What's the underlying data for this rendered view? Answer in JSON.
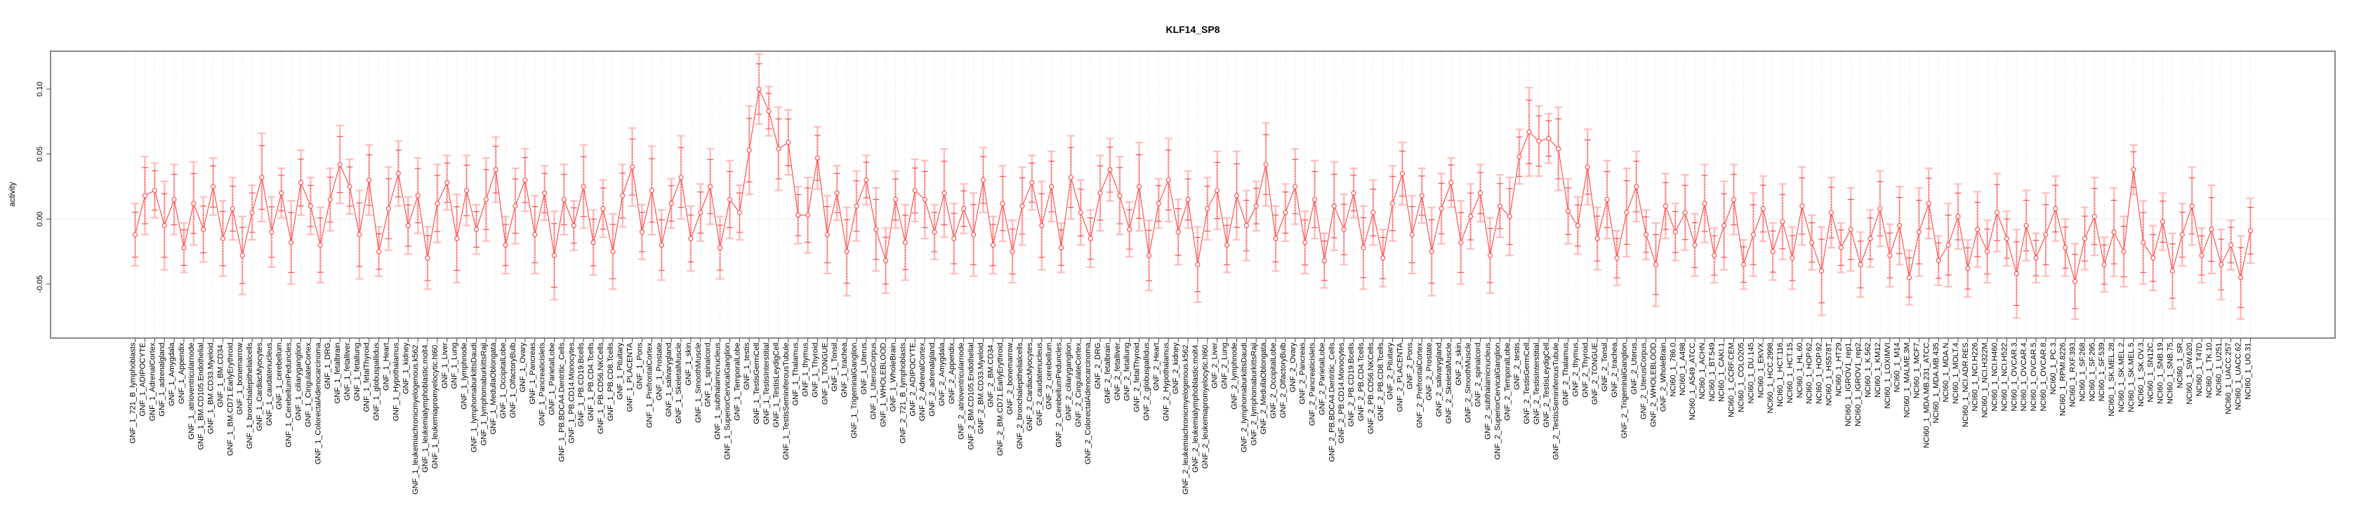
{
  "page": {
    "background": "#ffffff"
  },
  "chart_data": {
    "type": "line",
    "title": "KLF14_SP8",
    "ylabel": "activity",
    "xlabel": "",
    "legend": "none",
    "marker": "open-circle",
    "line_color": "#ff4646",
    "error_bar_outer_color": "#ffb4b4",
    "grid_color": "#dcdcdc",
    "zero_line_color": "#c9c9c9",
    "frame_color": "#8a8a8a",
    "tick_color": "#4a4a4a",
    "grid": "vertical-dashed-per-category",
    "zero_line": true,
    "ylim": [
      -0.092,
      0.129
    ],
    "yticks": [
      -0.05,
      0.0,
      0.05,
      0.1
    ],
    "ytick_labels": [
      "-0.05",
      "0.00",
      "0.05",
      "0.10"
    ],
    "series_order": [
      {
        "prefix": "GNF_1_",
        "panel": "tissue_panel"
      },
      {
        "prefix": "GNF_2_",
        "panel": "tissue_panel"
      },
      {
        "prefix": "NCI60_1_",
        "panel": "cell_line_panel"
      }
    ],
    "tissue_panel": [
      "721_B_lymphoblasts",
      "ADIPOCYTE",
      "AdrenalCortex",
      "adrenalgland",
      "Amygdala",
      "Appendix",
      "atrioventricularnode",
      "BM.CD105.Endothelial",
      "BM.CD33.Myeloid",
      "BM.CD34.",
      "BM.CD71.EarlyErythroid",
      "bonemarrow",
      "bronchialepithelialcells",
      "CardiacMyocytes",
      "caudatenucleus",
      "cerebellum",
      "CerebellumPeduncles",
      "ciliaryganglion",
      "CingulateCortex",
      "ColorectalAdenocarcinoma",
      "DRG",
      "fetalbrain",
      "fetalliver",
      "fetallung",
      "fetalThyroid",
      "globuspallidus",
      "Heart",
      "Hypothalamus",
      "kidney",
      "leukemiachronicmyelogenous.k562.",
      "leukemialymphoblastic.molt4.",
      "leukemiapromyelocytic.hl60.",
      "Liver",
      "Lung",
      "lymphnode",
      "lymphomaburkittsDaudi",
      "lymphomaburkittsRaji",
      "MedullaOblongata",
      "OccipitalLobe",
      "OlfactoryBulb",
      "Ovary",
      "Pancreas",
      "Pancreaticislets",
      "ParietalLobe",
      "PB.BDCA4.Dentritic_Cells",
      "PB.CD14.Monocytes",
      "PB.CD19.Bcells",
      "PB.CD4.Tcells",
      "PB.CD56.NKCells",
      "PB.CD8.Tcells",
      "Pituitary",
      "PLACENTA",
      "Pons",
      "PrefrontalCortex",
      "Prostate",
      "salivarygland",
      "SkeletalMuscle",
      "skin",
      "SmoothMuscle",
      "spinalcord",
      "subthalamicnucleus",
      "SuperiorCervicalGanglion",
      "TemporalLobe",
      "testis",
      "TestisGermCell",
      "TestisInterstitial",
      "TestisLeydigCell",
      "TestisSeminiferousTubule",
      "Thalamus",
      "thymus",
      "Thyroid",
      "TONGUE",
      "Tonsil",
      "trachea",
      "TrigeminalGanglion",
      "Uterus",
      "UterusCorpus",
      "WHOLEBLOOD",
      "WholeBrain"
    ],
    "cell_line_panel": [
      "786.0",
      "A498",
      "A549_ATCC",
      "ACHN",
      "BT.549",
      "CAKI.1",
      "CCRF.CEM",
      "COLO205",
      "DU.145",
      "EKVX",
      "HCC.2998",
      "HCT.116",
      "HCT.15",
      "HL.60",
      "HOP.62",
      "HOP.92",
      "HS578T",
      "HT29",
      "IGROV1_rep1",
      "IGROV1_rep2",
      "K.562",
      "KM12",
      "LOXIMVI",
      "M14",
      "MALME.3M",
      "MCF7",
      "MDA.MB.231_ATCC",
      "MDA.MB.435",
      "MDA.N",
      "MOLT.4",
      "NCI.ADR.RES",
      "NCI.H226",
      "NCI.H322M",
      "NCI.H460",
      "NCI.H522",
      "OVCAR.3",
      "OVCAR.4",
      "OVCAR.5",
      "OVCAR.8",
      "PC.3",
      "RPMI.8226",
      "RXF.393",
      "SF.268",
      "SF.295",
      "SF.539",
      "SK.MEL.28",
      "SK.MEL.2",
      "SK.MEL.5",
      "SK.OV.3",
      "SN12C",
      "SNB.19",
      "SNB.75",
      "SR",
      "SW.620",
      "T47D",
      "TK.10",
      "U251",
      "UACC.257",
      "UACC.62",
      "UO.31"
    ],
    "values": [
      -0.012,
      0.018,
      0.022,
      -0.005,
      0.015,
      -0.022,
      0.012,
      -0.008,
      0.025,
      -0.015,
      0.008,
      -0.028,
      0.005,
      0.032,
      -0.01,
      0.02,
      -0.018,
      0.028,
      0.01,
      -0.02,
      0.015,
      0.042,
      0.025,
      -0.012,
      0.03,
      -0.025,
      0.008,
      0.035,
      -0.005,
      0.018,
      -0.03,
      0.012,
      0.028,
      -0.015,
      0.022,
      -0.008,
      0.015,
      0.038,
      -0.02,
      0.01,
      0.03,
      -0.012,
      0.02,
      -0.028,
      0.015,
      -0.005,
      0.025,
      -0.018,
      0.008,
      -0.025,
      0.018,
      0.04,
      -0.01,
      0.022,
      -0.02,
      0.012,
      0.032,
      -0.015,
      0.005,
      0.025,
      -0.022,
      0.015,
      0.005,
      0.053,
      0.1,
      0.083,
      0.054,
      0.059,
      0.003,
      0.003,
      0.047,
      -0.012,
      0.02,
      -0.025,
      0.01,
      0.03,
      -0.008,
      -0.032,
      0.015,
      -0.018,
      0.022,
      0.015,
      -0.01,
      0.02,
      -0.015,
      0.008,
      -0.012,
      0.03,
      -0.02,
      0.012,
      -0.025,
      0.01,
      0.028,
      -0.005,
      0.025,
      -0.022,
      0.032,
      0.005,
      -0.015,
      0.02,
      0.038,
      0.018,
      -0.008,
      0.025,
      -0.028,
      0.012,
      0.03,
      -0.01,
      0.015,
      -0.035,
      0.008,
      0.022,
      -0.02,
      0.018,
      -0.005,
      0.01,
      0.042,
      -0.015,
      0.005,
      0.025,
      -0.018,
      0.015,
      -0.032,
      0.01,
      -0.008,
      0.02,
      -0.022,
      0.005,
      -0.03,
      0.012,
      0.035,
      -0.012,
      0.018,
      -0.025,
      0.008,
      0.028,
      -0.018,
      0.002,
      0.02,
      -0.028,
      0.01,
      0.002,
      0.048,
      0.067,
      0.06,
      0.062,
      0.054,
      0.006,
      -0.005,
      0.04,
      -0.015,
      0.015,
      -0.03,
      0.005,
      0.025,
      -0.012,
      -0.035,
      0.01,
      -0.01,
      0.005,
      -0.02,
      0.012,
      -0.028,
      -0.005,
      0.015,
      -0.035,
      -0.012,
      0.008,
      -0.025,
      -0.002,
      -0.03,
      0.01,
      -0.018,
      -0.04,
      0.005,
      -0.022,
      -0.008,
      -0.035,
      -0.015,
      0.008,
      -0.028,
      -0.005,
      -0.045,
      -0.01,
      0.012,
      -0.032,
      -0.02,
      0.002,
      -0.038,
      -0.008,
      -0.025,
      0.005,
      -0.015,
      -0.042,
      -0.005,
      -0.03,
      -0.012,
      0.008,
      -0.022,
      -0.048,
      -0.015,
      0.002,
      -0.035,
      -0.01,
      -0.025,
      0.038,
      -0.018,
      -0.03,
      -0.002,
      -0.04,
      -0.012,
      0.01,
      -0.028,
      -0.008,
      -0.035,
      -0.02,
      -0.045,
      -0.009
    ],
    "err_pattern": [
      0.024,
      0.03,
      0.021,
      0.034,
      0.027,
      0.019,
      0.032,
      0.025,
      0.022,
      0.029
    ],
    "err_inner_ratio": 0.72
  }
}
